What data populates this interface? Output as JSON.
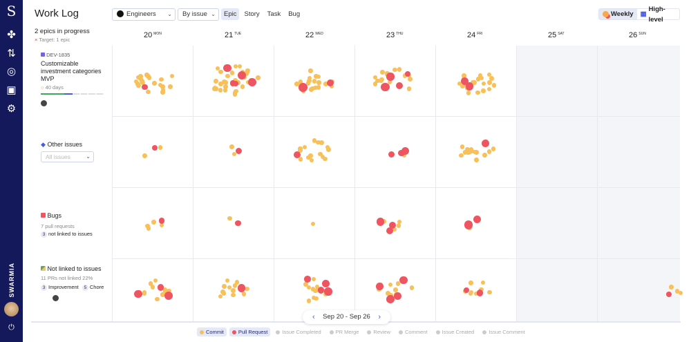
{
  "app": {
    "title": "Work Log",
    "brand": "SWARMIA"
  },
  "nav": [
    {
      "icon": "logo-icon"
    },
    {
      "icon": "work-log-icon"
    },
    {
      "icon": "pull-request-icon"
    },
    {
      "icon": "target-icon"
    },
    {
      "icon": "documents-icon"
    },
    {
      "icon": "settings-icon"
    }
  ],
  "toolbar": {
    "team": "Engineers",
    "group_by": "By issue",
    "filters": [
      "Epic",
      "Story",
      "Task",
      "Bug"
    ],
    "active_filter": "Epic",
    "views": [
      "Weekly",
      "High-level"
    ],
    "active_view": "Weekly"
  },
  "summary": {
    "title": "2 epics in progress",
    "target": "Target: 1 epic"
  },
  "days": [
    {
      "num": "20",
      "name": "MON"
    },
    {
      "num": "21",
      "name": "TUE"
    },
    {
      "num": "22",
      "name": "WED"
    },
    {
      "num": "23",
      "name": "THU"
    },
    {
      "num": "24",
      "name": "FRI"
    },
    {
      "num": "25",
      "name": "SAT"
    },
    {
      "num": "26",
      "name": "SUN"
    }
  ],
  "rows": [
    {
      "key": "DEV-1835",
      "title": "Customizable investment categories MVP",
      "age": "40 days",
      "progress": 0.5
    },
    {
      "title": "Other issues",
      "filter_placeholder": "All issues"
    },
    {
      "title": "Bugs",
      "sub": "7 pull requests",
      "badge": "3",
      "badge_text": "not linked to issues"
    },
    {
      "title": "Not linked to issues",
      "sub": "11 PRs not linked 22%",
      "b1": "3",
      "b1_text": "Improvement",
      "b2": "5",
      "b2_text": "Chore"
    }
  ],
  "activity": [
    [
      [
        20,
        1
      ],
      [
        30,
        5
      ],
      [
        18,
        2
      ],
      [
        15,
        4
      ],
      [
        22,
        2
      ],
      [
        0,
        0
      ],
      [
        0,
        0
      ]
    ],
    [
      [
        2,
        1
      ],
      [
        2,
        1
      ],
      [
        15,
        1
      ],
      [
        1,
        3
      ],
      [
        15,
        1
      ],
      [
        0,
        0
      ],
      [
        0,
        0
      ]
    ],
    [
      [
        4,
        1
      ],
      [
        1,
        1
      ],
      [
        1,
        0
      ],
      [
        6,
        3
      ],
      [
        2,
        2
      ],
      [
        0,
        0
      ],
      [
        0,
        0
      ]
    ],
    [
      [
        12,
        3
      ],
      [
        12,
        1
      ],
      [
        12,
        4
      ],
      [
        10,
        4
      ],
      [
        8,
        2
      ],
      [
        0,
        0
      ],
      [
        3,
        1
      ]
    ]
  ],
  "pager": {
    "range": "Sep 20 - Sep 26"
  },
  "legend": [
    {
      "label": "Commit",
      "on": true,
      "color": "#f8c05a"
    },
    {
      "label": "Pull Request",
      "on": true,
      "color": "#ee5560"
    },
    {
      "label": "Issue Completed"
    },
    {
      "label": "PR Merge"
    },
    {
      "label": "Review"
    },
    {
      "label": "Comment"
    },
    {
      "label": "Issue Created"
    },
    {
      "label": "Issue Comment"
    }
  ],
  "colors": {
    "commit": "#f8c05a",
    "pr": "#ee5560",
    "nav": "#13195a",
    "accent": "#4a5ad8"
  }
}
